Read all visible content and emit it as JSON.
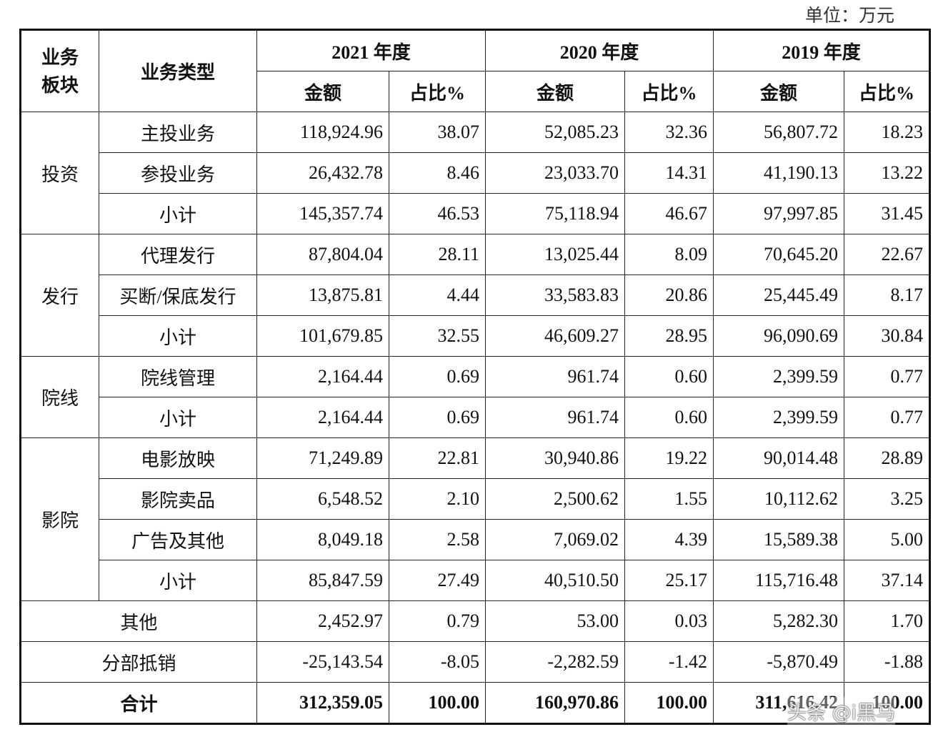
{
  "unit": "单位：万元",
  "header": {
    "segment": "业务板块",
    "type": "业务类型",
    "years": [
      "2021 年度",
      "2020 年度",
      "2019 年度"
    ],
    "subheaders": [
      "金额",
      "占比%",
      "金额",
      "占比%",
      "金额",
      "占比%"
    ]
  },
  "segments": [
    {
      "name": "投资",
      "rows": [
        {
          "type": "主投业务",
          "values": [
            "118,924.96",
            "38.07",
            "52,085.23",
            "32.36",
            "56,807.72",
            "18.23"
          ]
        },
        {
          "type": "参投业务",
          "values": [
            "26,432.78",
            "8.46",
            "23,033.70",
            "14.31",
            "41,190.13",
            "13.22"
          ]
        },
        {
          "type": "小计",
          "values": [
            "145,357.74",
            "46.53",
            "75,118.94",
            "46.67",
            "97,997.85",
            "31.45"
          ]
        }
      ]
    },
    {
      "name": "发行",
      "rows": [
        {
          "type": "代理发行",
          "values": [
            "87,804.04",
            "28.11",
            "13,025.44",
            "8.09",
            "70,645.20",
            "22.67"
          ]
        },
        {
          "type": "买断/保底发行",
          "values": [
            "13,875.81",
            "4.44",
            "33,583.83",
            "20.86",
            "25,445.49",
            "8.17"
          ]
        },
        {
          "type": "小计",
          "values": [
            "101,679.85",
            "32.55",
            "46,609.27",
            "28.95",
            "96,090.69",
            "30.84"
          ]
        }
      ]
    },
    {
      "name": "院线",
      "rows": [
        {
          "type": "院线管理",
          "values": [
            "2,164.44",
            "0.69",
            "961.74",
            "0.60",
            "2,399.59",
            "0.77"
          ]
        },
        {
          "type": "小计",
          "values": [
            "2,164.44",
            "0.69",
            "961.74",
            "0.60",
            "2,399.59",
            "0.77"
          ]
        }
      ]
    },
    {
      "name": "影院",
      "rows": [
        {
          "type": "电影放映",
          "values": [
            "71,249.89",
            "22.81",
            "30,940.86",
            "19.22",
            "90,014.48",
            "28.89"
          ]
        },
        {
          "type": "影院卖品",
          "values": [
            "6,548.52",
            "2.10",
            "2,500.62",
            "1.55",
            "10,112.62",
            "3.25"
          ]
        },
        {
          "type": "广告及其他",
          "values": [
            "8,049.18",
            "2.58",
            "7,069.02",
            "4.39",
            "15,589.38",
            "5.00"
          ]
        },
        {
          "type": "小计",
          "values": [
            "85,847.59",
            "27.49",
            "40,510.50",
            "25.17",
            "115,716.48",
            "37.14"
          ]
        }
      ]
    }
  ],
  "others": [
    {
      "label": "其他",
      "values": [
        "2,452.97",
        "0.79",
        "53.00",
        "0.03",
        "5,282.30",
        "1.70"
      ]
    },
    {
      "label": "分部抵销",
      "values": [
        "-25,143.54",
        "-8.05",
        "-2,282.59",
        "-1.42",
        "-5,870.49",
        "-1.88"
      ]
    },
    {
      "label": "合计",
      "values": [
        "312,359.05",
        "100.00",
        "160,970.86",
        "100.00",
        "311,616.42",
        "100.00"
      ]
    }
  ],
  "watermark": "头条 @i黑马"
}
